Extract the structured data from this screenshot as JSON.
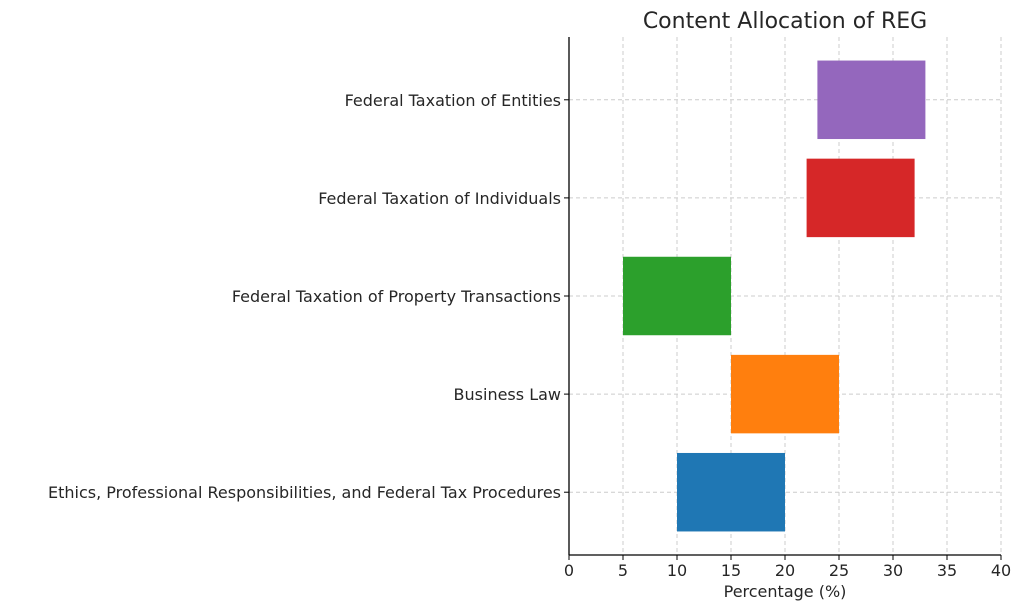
{
  "chart_data": {
    "type": "bar",
    "orientation": "horizontal",
    "style": "floating-range",
    "title": "Content Allocation of REG",
    "xlabel": "Percentage (%)",
    "ylabel": "",
    "xlim": [
      0,
      40
    ],
    "xticks": [
      0,
      5,
      10,
      15,
      20,
      25,
      30,
      35,
      40
    ],
    "grid": true,
    "categories": [
      "Ethics, Professional Responsibilities, and Federal Tax Procedures",
      "Business Law",
      "Federal Taxation of Property Transactions",
      "Federal Taxation of Individuals",
      "Federal Taxation of Entities"
    ],
    "ranges": [
      [
        10,
        20
      ],
      [
        15,
        25
      ],
      [
        5,
        15
      ],
      [
        22,
        32
      ],
      [
        23,
        33
      ]
    ],
    "colors": [
      "#1f77b4",
      "#ff7f0e",
      "#2ca02c",
      "#d62728",
      "#9467bd"
    ]
  }
}
